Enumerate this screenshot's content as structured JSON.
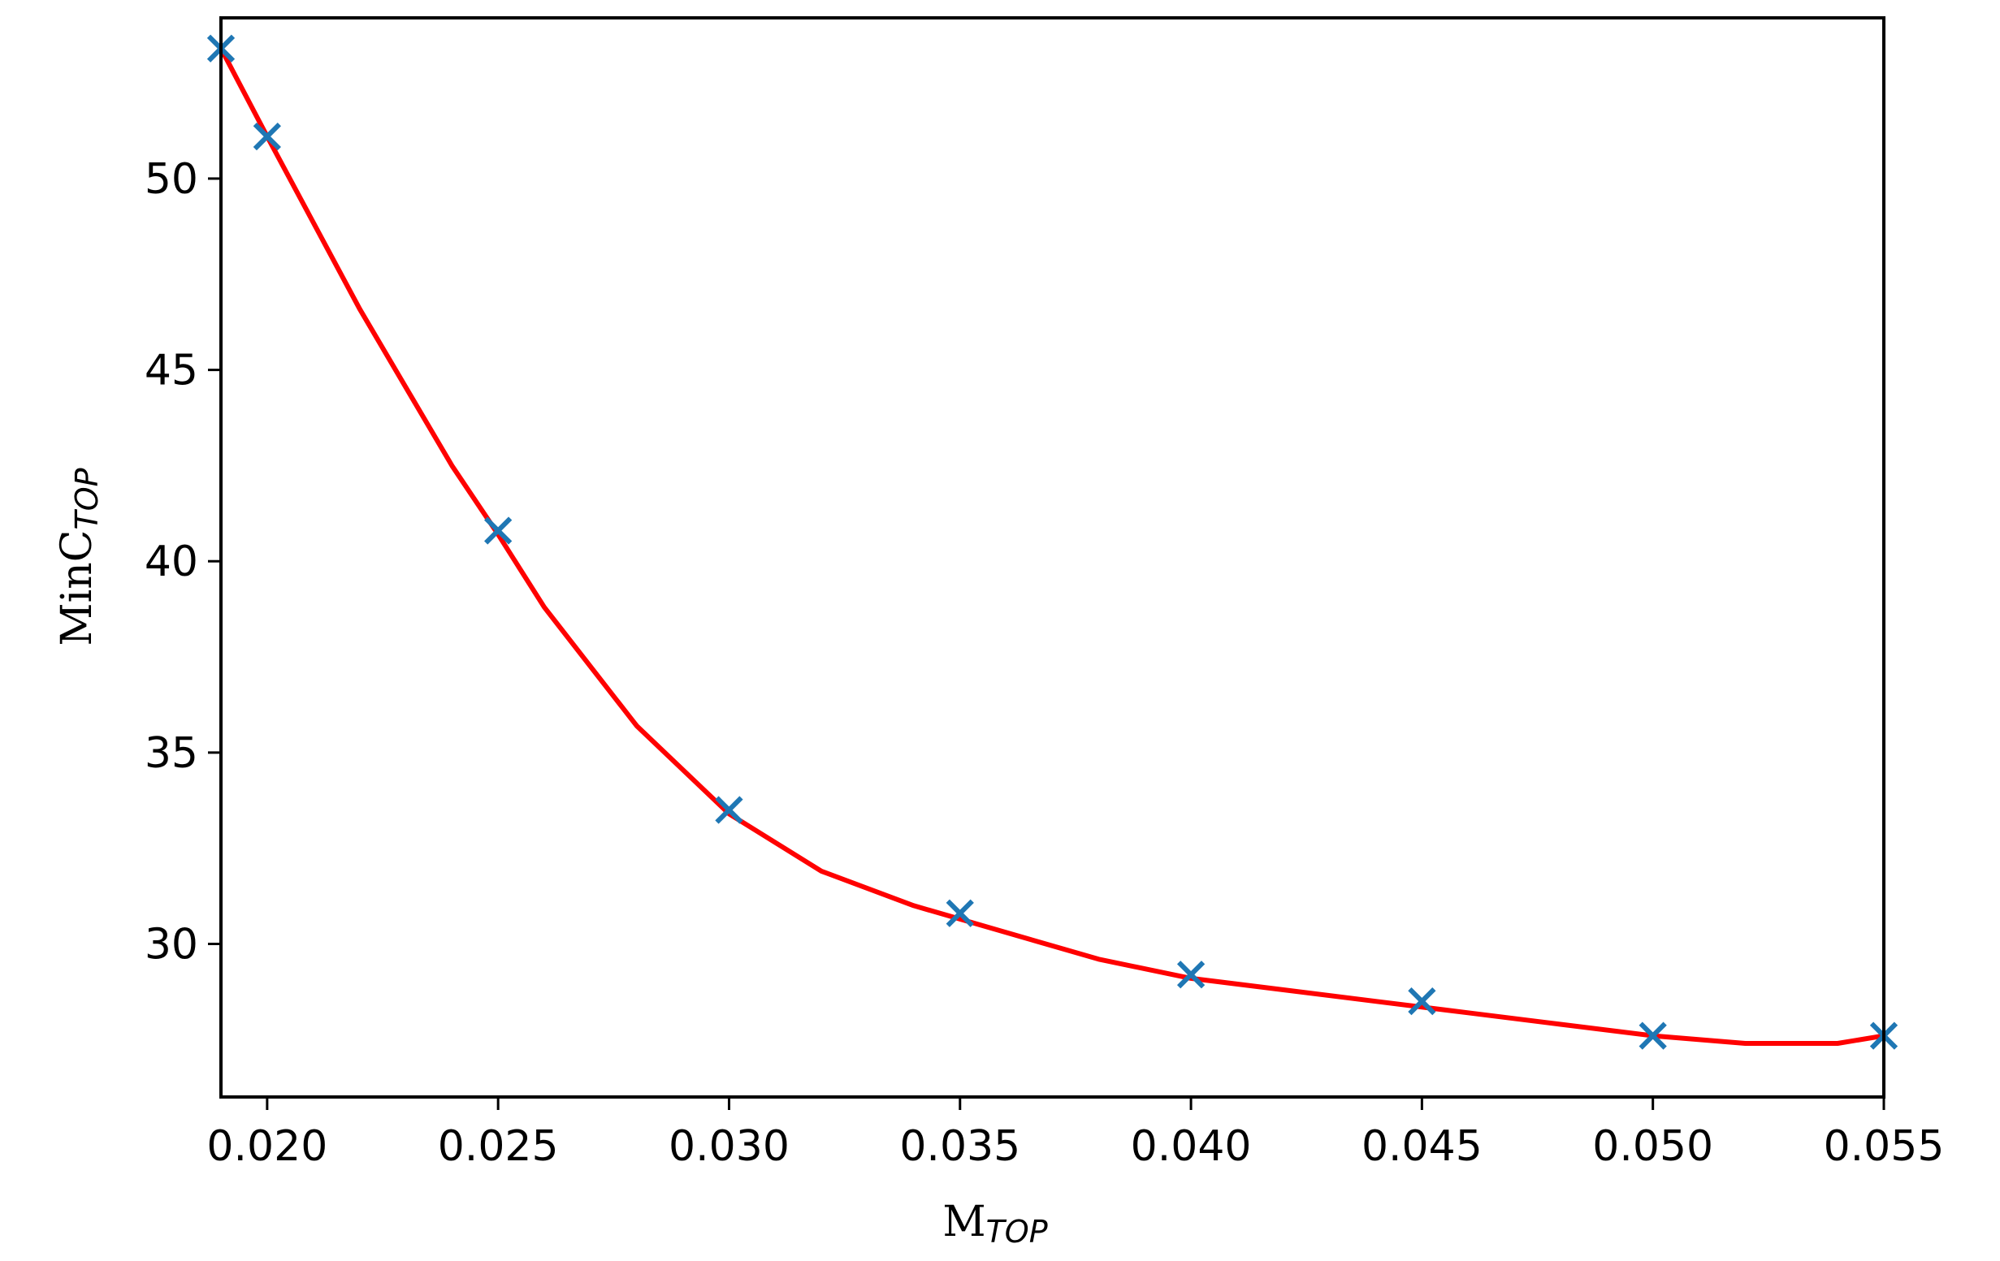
{
  "chart_data": {
    "type": "line",
    "title": "",
    "xlabel": "M",
    "xlabel_sub": "TOP",
    "ylabel": "MinC",
    "ylabel_sub": "TOP",
    "xlim": [
      0.019,
      0.055
    ],
    "ylim": [
      26.0,
      54.2
    ],
    "xticks": [
      0.02,
      0.025,
      0.03,
      0.035,
      0.04,
      0.045,
      0.05,
      0.055
    ],
    "xtick_labels": [
      "0.020",
      "0.025",
      "0.030",
      "0.035",
      "0.040",
      "0.045",
      "0.050",
      "0.055"
    ],
    "yticks": [
      30,
      35,
      40,
      45,
      50
    ],
    "ytick_labels": [
      "30",
      "35",
      "40",
      "45",
      "50"
    ],
    "grid": false,
    "series": [
      {
        "kind": "scatter",
        "marker": "x",
        "color": "#1f77b4",
        "x": [
          0.019,
          0.02,
          0.025,
          0.03,
          0.035,
          0.04,
          0.045,
          0.05,
          0.055
        ],
        "y": [
          53.4,
          51.1,
          40.8,
          33.5,
          30.8,
          29.2,
          28.5,
          27.6,
          27.6
        ]
      },
      {
        "kind": "line",
        "color": "#ff0000",
        "x": [
          0.019,
          0.02,
          0.022,
          0.024,
          0.025,
          0.026,
          0.028,
          0.03,
          0.032,
          0.034,
          0.036,
          0.038,
          0.04,
          0.042,
          0.044,
          0.046,
          0.048,
          0.05,
          0.052,
          0.054,
          0.055
        ],
        "y": [
          53.4,
          51.1,
          46.6,
          42.5,
          40.7,
          38.8,
          35.7,
          33.4,
          31.9,
          31.0,
          30.3,
          29.6,
          29.1,
          28.8,
          28.5,
          28.2,
          27.9,
          27.6,
          27.4,
          27.4,
          27.6
        ]
      }
    ]
  }
}
